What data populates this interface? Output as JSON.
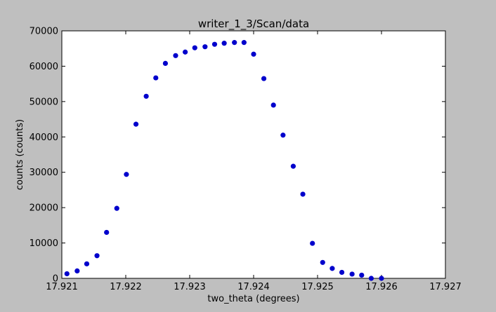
{
  "chart_data": {
    "type": "scatter",
    "title": "writer_1_3/Scan/data",
    "xlabel": "two_theta (degrees)",
    "ylabel": "counts (counts)",
    "xlim": [
      17.921,
      17.927
    ],
    "ylim": [
      0,
      70000
    ],
    "x_ticks": [
      17.921,
      17.922,
      17.923,
      17.924,
      17.925,
      17.926,
      17.927
    ],
    "x_tick_labels": [
      "17.921",
      "17.922",
      "17.923",
      "17.924",
      "17.925",
      "17.926",
      "17.927"
    ],
    "y_ticks": [
      0,
      10000,
      20000,
      30000,
      40000,
      50000,
      60000,
      70000
    ],
    "y_tick_labels": [
      "0",
      "10000",
      "20000",
      "30000",
      "40000",
      "50000",
      "60000",
      "70000"
    ],
    "grid": false,
    "legend": "none",
    "marker_color": "#0000cc",
    "series": [
      {
        "x": [
          17.92108,
          17.92124,
          17.92139,
          17.92155,
          17.9217,
          17.92186,
          17.92201,
          17.92216,
          17.92232,
          17.92247,
          17.92262,
          17.92278,
          17.92293,
          17.92308,
          17.92324,
          17.92339,
          17.92354,
          17.9237,
          17.92385,
          17.924,
          17.92416,
          17.92431,
          17.92446,
          17.92462,
          17.92477,
          17.92492,
          17.92508,
          17.92523,
          17.92538,
          17.92554,
          17.92569,
          17.92584,
          17.926
        ],
        "y": [
          1300,
          2100,
          4100,
          6400,
          13000,
          19800,
          29400,
          43600,
          51500,
          56700,
          60800,
          63000,
          64000,
          65200,
          65500,
          66200,
          66500,
          66700,
          66700,
          63400,
          56500,
          49000,
          40500,
          31700,
          23800,
          9900,
          4500,
          2800,
          1700,
          1200,
          900,
          0,
          0
        ]
      }
    ]
  },
  "colors": {
    "figure_background": "#bfbfbf",
    "axes_background": "#ffffff",
    "marker": "#0000cc"
  }
}
